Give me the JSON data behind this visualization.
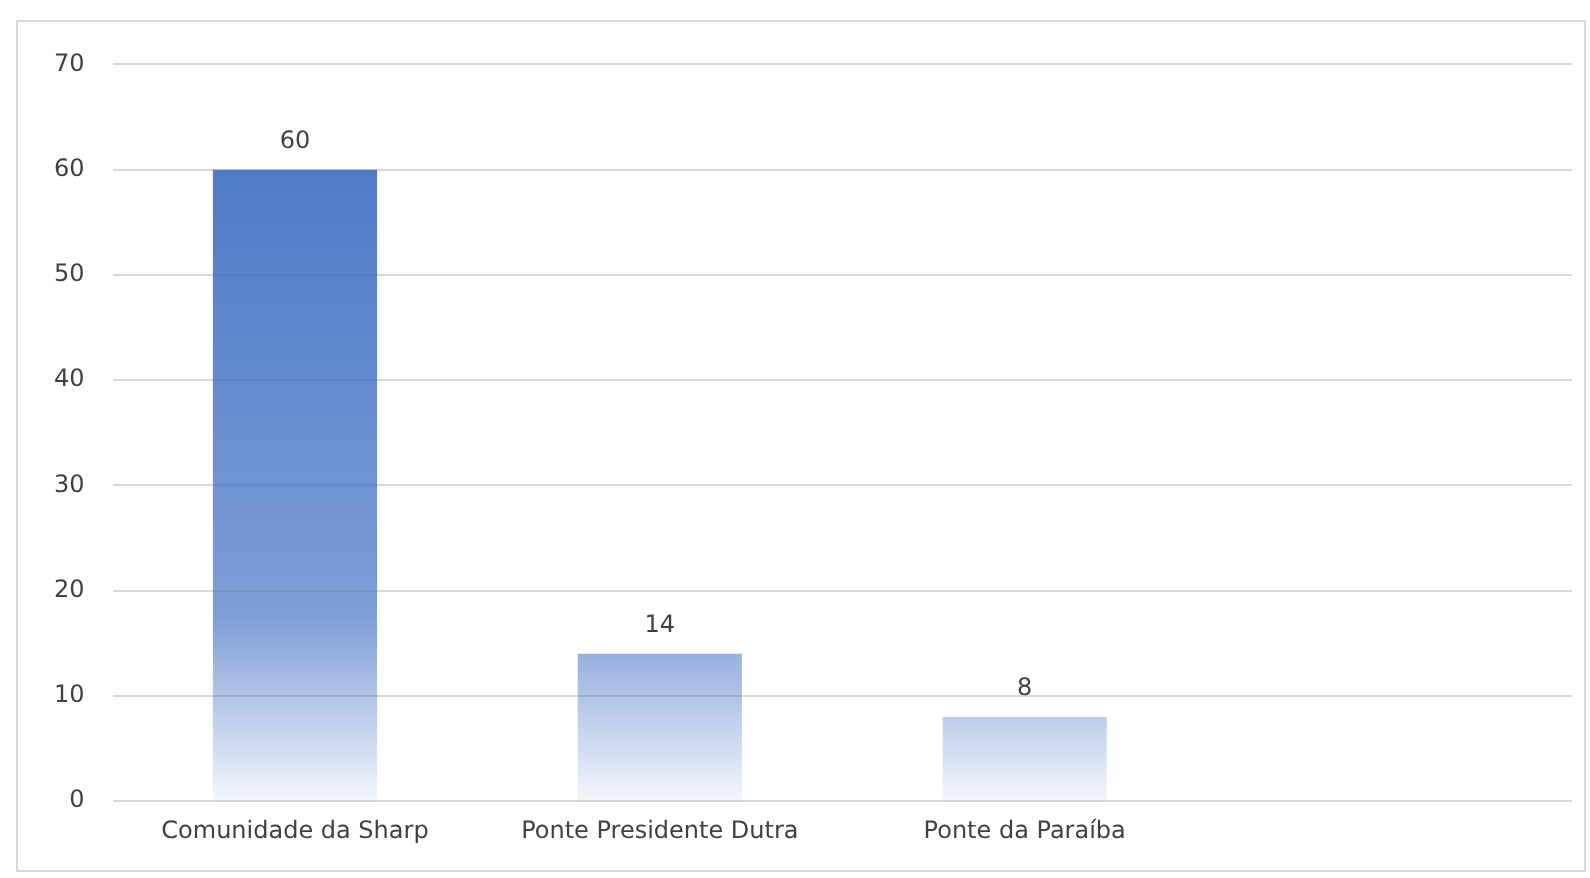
{
  "chart_data": {
    "type": "bar",
    "categories": [
      "Comunidade da Sharp",
      "Ponte Presidente Dutra",
      "Ponte da Paraíba",
      null
    ],
    "values": [
      60,
      14,
      8,
      null
    ],
    "color": "#4472c4",
    "ylim": [
      0,
      70
    ],
    "yticks": [
      0,
      10,
      20,
      30,
      40,
      50,
      60,
      70
    ],
    "grid": "y",
    "data_labels": true,
    "legend": false
  }
}
